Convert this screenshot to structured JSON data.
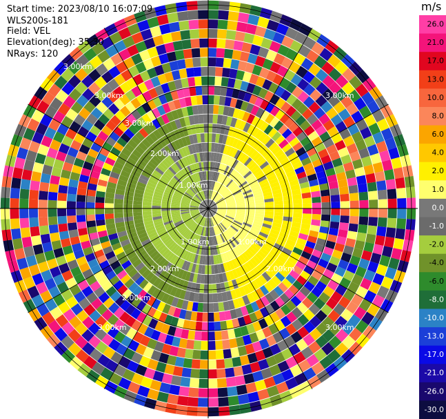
{
  "header": {
    "start_time": "Start time: 2023/08/10 16:07:09",
    "instrument": "WLS200s-181",
    "field": "Field: VEL",
    "elevation": "Elevation(deg): 35.30",
    "nrays": "NRays: 120"
  },
  "colorbar": {
    "unit": "m/s",
    "ticks": [
      "26.0",
      "21.0",
      "17.0",
      "13.0",
      "10.0",
      "8.0",
      "6.0",
      "4.0",
      "2.0",
      "1.0",
      "0.0",
      "-1.0",
      "-2.0",
      "-4.0",
      "-6.0",
      "-8.0",
      "-10.0",
      "-13.0",
      "-17.0",
      "-21.0",
      "-26.0",
      "-30.0"
    ],
    "colors": [
      "#ff3ea6",
      "#f4147a",
      "#e1061f",
      "#f23f18",
      "#f8663d",
      "#fb865a",
      "#fba500",
      "#ffc800",
      "#fff000",
      "#ffff6e",
      "#787878",
      "#6b6b6b",
      "#a5cd3e",
      "#70922a",
      "#2e8b2c",
      "#1f6e38",
      "#2b82c6",
      "#1b3fd8",
      "#0a0ae6",
      "#1b0aa8",
      "#19086d",
      "#0d0d40"
    ]
  },
  "chart_data": {
    "type": "ppi",
    "field": "VEL",
    "units": "m/s",
    "range_rings": [
      {
        "label": "1.00km"
      },
      {
        "label": "2.00km"
      },
      {
        "label": "3.00km"
      }
    ],
    "ring_labels": [
      "1.00km",
      "1.00km",
      "1.00km",
      "2.00km",
      "2.00km",
      "2.00km",
      "2.00km",
      "3.00km",
      "3.00km",
      "3.00km",
      "3.00km",
      "3.00km",
      "3.00km"
    ],
    "color_scale": {
      "min": -30.0,
      "max": 26.0,
      "ticks": [
        26.0,
        21.0,
        17.0,
        13.0,
        10.0,
        8.0,
        6.0,
        4.0,
        2.0,
        1.0,
        0.0,
        -1.0,
        -2.0,
        -4.0,
        -6.0,
        -8.0,
        -10.0,
        -13.0,
        -17.0,
        -21.0,
        -26.0,
        -30.0
      ]
    },
    "nrays": 120,
    "gates": 22,
    "valid_range_fraction": 0.53
  }
}
